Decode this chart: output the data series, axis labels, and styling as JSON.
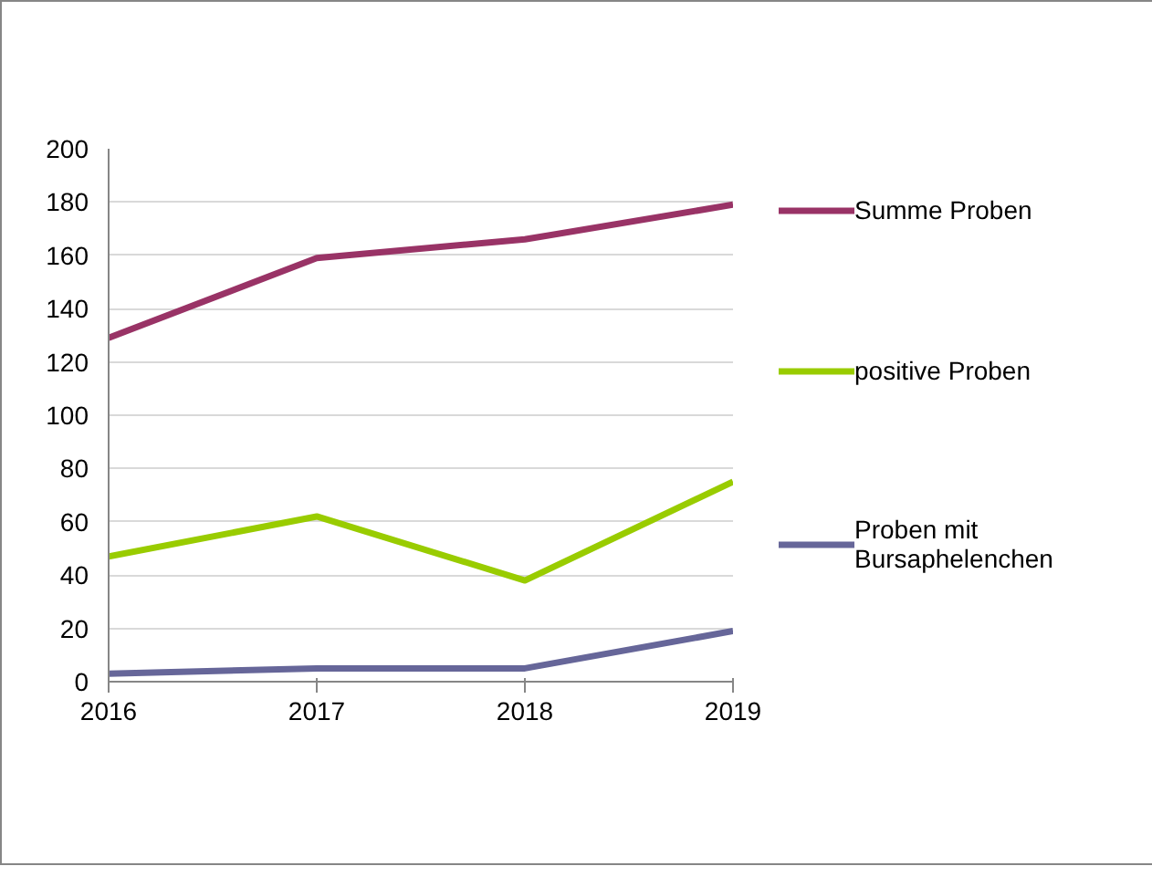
{
  "chart_data": {
    "type": "line",
    "x": [
      2016,
      2017,
      2018,
      2019
    ],
    "xlim": [
      2016,
      2019
    ],
    "xticks": [
      2016,
      2017,
      2018,
      2019
    ],
    "ylim": [
      0,
      200
    ],
    "yticks": [
      0,
      20,
      40,
      60,
      80,
      100,
      120,
      140,
      160,
      180,
      200
    ],
    "grid": "y",
    "legend": "right",
    "marker": "none",
    "line_style": "solid",
    "series": [
      {
        "name": "Summe Proben",
        "color": "#993366",
        "values": [
          129,
          159,
          166,
          179
        ]
      },
      {
        "name": "positive Proben",
        "color": "#99cc00",
        "values": [
          47,
          62,
          38,
          75
        ]
      },
      {
        "name": "Proben mit Bursaphelenchen",
        "color": "#666699",
        "values": [
          3,
          5,
          5,
          19
        ]
      }
    ]
  }
}
